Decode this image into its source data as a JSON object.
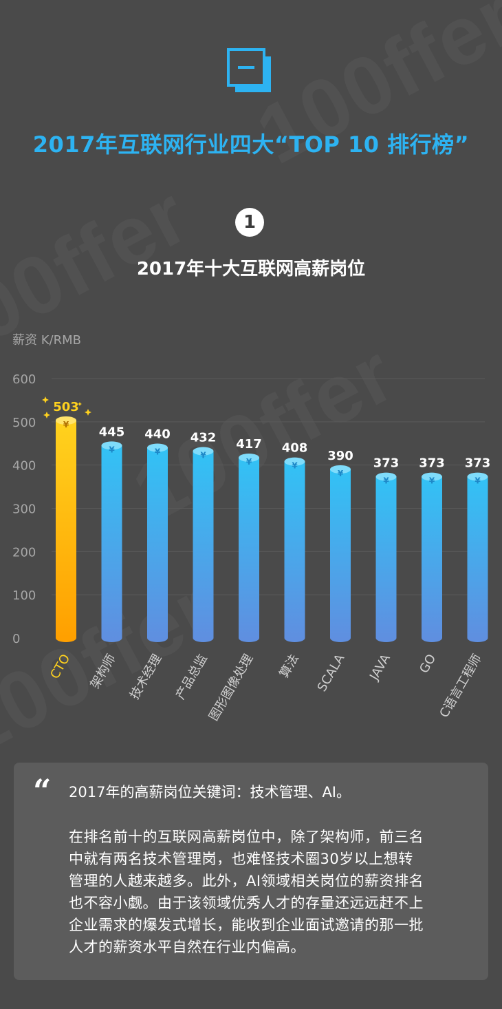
{
  "header": {
    "title": "2017年互联网行业四大“TOP 10 排行榜”",
    "section_number": "1",
    "chart_title": "2017年十大互联网高薪岗位",
    "y_unit_label": "薪资 K/RMB",
    "watermark_text": "100ffer"
  },
  "colors": {
    "background": "#4a4a4a",
    "accent_blue": "#2db3f2",
    "highlight_gold": "#ffd21e",
    "bar_blue_top": "#32c2f5",
    "bar_blue_bottom": "#5f8fe0",
    "bar_gold_top": "#ffd21e",
    "bar_gold_bottom": "#ffa000"
  },
  "chart_data": {
    "type": "bar",
    "title": "2017年十大互联网高薪岗位",
    "ylabel": "薪资 K/RMB",
    "xlabel": "",
    "ylim": [
      0,
      600
    ],
    "yticks": [
      0,
      100,
      200,
      300,
      400,
      500,
      600
    ],
    "grid": true,
    "categories": [
      "CTO",
      "架构师",
      "技术经理",
      "产品总监",
      "图形图像处理",
      "算法",
      "SCALA",
      "JAVA",
      "GO",
      "C语言工程师"
    ],
    "values": [
      503,
      445,
      440,
      432,
      417,
      408,
      390,
      373,
      373,
      373
    ],
    "highlight_index": 0,
    "bar_symbol": "¥"
  },
  "quote": {
    "mark": "“",
    "keyword_line": "2017年的高薪岗位关键词：技术管理、AI。",
    "body_lines": [
      "在排名前十的互联网高薪岗位中，除了架构师，前三名",
      "中就有两名技术管理岗，也难怪技术圈30岁以上想转",
      "管理的人越来越多。此外，AI领域相关岗位的薪资排名",
      "也不容小觑。由于该领域优秀人才的存量还远远赶不上",
      "企业需求的爆发式增长，能收到企业面试邀请的那一批",
      "人才的薪资水平自然在行业内偏高。"
    ]
  }
}
